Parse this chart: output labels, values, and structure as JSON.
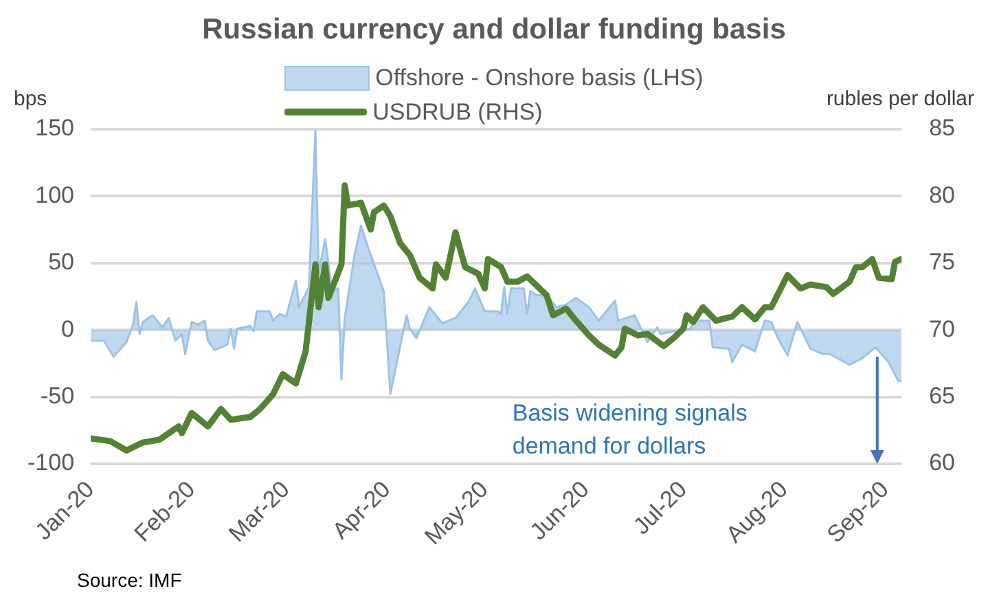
{
  "chart_data": {
    "type": "area",
    "title": "Russian currency and dollar funding basis",
    "ylabel": "bps",
    "y2label": "rubles per dollar",
    "xlim": [
      "2020-01-01",
      "2020-09-06"
    ],
    "xticks": [
      {
        "value": "2020-01-01",
        "label": "Jan-20"
      },
      {
        "value": "2020-02-01",
        "label": "Feb-20"
      },
      {
        "value": "2020-03-01",
        "label": "Mar-20"
      },
      {
        "value": "2020-04-01",
        "label": "Apr-20"
      },
      {
        "value": "2020-05-01",
        "label": "May-20"
      },
      {
        "value": "2020-06-01",
        "label": "Jun-20"
      },
      {
        "value": "2020-07-01",
        "label": "Jul-20"
      },
      {
        "value": "2020-08-01",
        "label": "Aug-20"
      },
      {
        "value": "2020-09-01",
        "label": "Sep-20"
      }
    ],
    "ylim": [
      -100,
      150
    ],
    "yticks": [
      -100,
      -50,
      0,
      50,
      100,
      150
    ],
    "y2lim": [
      60,
      85
    ],
    "y2ticks": [
      60,
      65,
      70,
      75,
      80,
      85
    ],
    "grid": "y",
    "legend": "top",
    "marker": "none",
    "series": [
      {
        "name": "Offshore - Onshore basis (LHS)",
        "color": "#9dc3e6",
        "x": [
          "2020-01-01",
          "2020-01-05",
          "2020-01-08",
          "2020-01-12",
          "2020-01-14",
          "2020-01-15",
          "2020-01-16",
          "2020-01-17",
          "2020-01-20",
          "2020-01-23",
          "2020-01-25",
          "2020-01-27",
          "2020-01-29",
          "2020-01-30",
          "2020-02-01",
          "2020-02-03",
          "2020-02-05",
          "2020-02-06",
          "2020-02-08",
          "2020-02-12",
          "2020-02-13",
          "2020-02-14",
          "2020-02-15",
          "2020-02-19",
          "2020-02-20",
          "2020-02-21",
          "2020-02-25",
          "2020-02-26",
          "2020-02-28",
          "2020-03-01",
          "2020-03-04",
          "2020-03-05",
          "2020-03-08",
          "2020-03-10",
          "2020-03-11",
          "2020-03-13",
          "2020-03-15",
          "2020-03-17",
          "2020-03-18",
          "2020-03-19",
          "2020-03-22",
          "2020-03-24",
          "2020-03-26",
          "2020-03-31",
          "2020-04-02",
          "2020-04-07",
          "2020-04-08",
          "2020-04-10",
          "2020-04-14",
          "2020-04-16",
          "2020-04-18",
          "2020-04-22",
          "2020-04-26",
          "2020-04-28",
          "2020-05-01",
          "2020-05-05",
          "2020-05-06",
          "2020-05-07",
          "2020-05-08",
          "2020-05-09",
          "2020-05-13",
          "2020-05-14",
          "2020-05-15",
          "2020-05-17",
          "2020-05-20",
          "2020-05-23",
          "2020-05-26",
          "2020-05-29",
          "2020-06-02",
          "2020-06-05",
          "2020-06-10",
          "2020-06-11",
          "2020-06-16",
          "2020-06-18",
          "2020-06-20",
          "2020-06-23",
          "2020-06-24",
          "2020-06-28",
          "2020-07-03",
          "2020-07-05",
          "2020-07-09",
          "2020-07-10",
          "2020-07-15",
          "2020-07-16",
          "2020-07-19",
          "2020-07-23",
          "2020-07-26",
          "2020-07-28",
          "2020-07-30",
          "2020-08-02",
          "2020-08-05",
          "2020-08-09",
          "2020-08-13",
          "2020-08-15",
          "2020-08-21",
          "2020-08-25",
          "2020-08-29",
          "2020-09-02",
          "2020-09-05",
          "2020-09-06"
        ],
        "values": [
          -8,
          -8,
          -20,
          -9,
          4,
          21,
          -3,
          6,
          11,
          2,
          9,
          -8,
          -3,
          -18,
          6,
          4,
          7,
          -8,
          -15,
          -11,
          1,
          -14,
          1,
          3,
          -1,
          14,
          14,
          7,
          12,
          10,
          37,
          17,
          32,
          149,
          43,
          68,
          31,
          31,
          -37,
          9,
          56,
          78,
          63,
          29,
          -48,
          11,
          1,
          -6,
          17,
          11,
          5,
          9,
          21,
          31,
          14,
          14,
          12,
          32,
          12,
          31,
          31,
          12,
          29,
          26,
          26,
          17,
          19,
          24,
          17,
          7,
          22,
          7,
          11,
          1,
          -9,
          2,
          -3,
          -1,
          1,
          7,
          7,
          -13,
          -14,
          -24,
          -11,
          -16,
          7,
          6,
          -6,
          -19,
          6,
          -14,
          -18,
          -18,
          -26,
          -21,
          -13,
          -24,
          -38,
          -38
        ]
      },
      {
        "name": "USDRUB (RHS)",
        "type": "line",
        "axis": "y2",
        "color": "#548235",
        "x": [
          "2020-01-01",
          "2020-01-07",
          "2020-01-12",
          "2020-01-17",
          "2020-01-22",
          "2020-01-28",
          "2020-01-29",
          "2020-02-01",
          "2020-02-06",
          "2020-02-10",
          "2020-02-13",
          "2020-02-19",
          "2020-02-22",
          "2020-02-26",
          "2020-02-29",
          "2020-03-04",
          "2020-03-07",
          "2020-03-10",
          "2020-03-11",
          "2020-03-13",
          "2020-03-14",
          "2020-03-18",
          "2020-03-19",
          "2020-03-20",
          "2020-03-24",
          "2020-03-27",
          "2020-03-28",
          "2020-03-31",
          "2020-04-02",
          "2020-04-05",
          "2020-04-08",
          "2020-04-11",
          "2020-04-15",
          "2020-04-16",
          "2020-04-19",
          "2020-04-22",
          "2020-04-25",
          "2020-04-29",
          "2020-05-01",
          "2020-05-02",
          "2020-05-06",
          "2020-05-08",
          "2020-05-11",
          "2020-05-14",
          "2020-05-20",
          "2020-05-22",
          "2020-05-26",
          "2020-05-29",
          "2020-06-02",
          "2020-06-05",
          "2020-06-10",
          "2020-06-12",
          "2020-06-13",
          "2020-06-17",
          "2020-06-20",
          "2020-06-25",
          "2020-06-28",
          "2020-07-01",
          "2020-07-02",
          "2020-07-04",
          "2020-07-07",
          "2020-07-11",
          "2020-07-16",
          "2020-07-19",
          "2020-07-23",
          "2020-07-26",
          "2020-07-28",
          "2020-08-02",
          "2020-08-06",
          "2020-08-09",
          "2020-08-14",
          "2020-08-16",
          "2020-08-21",
          "2020-08-23",
          "2020-08-25",
          "2020-08-28",
          "2020-08-30",
          "2020-09-03",
          "2020-09-04",
          "2020-09-06"
        ],
        "values": [
          61.9,
          61.7,
          61.0,
          61.6,
          61.8,
          62.8,
          62.3,
          63.8,
          62.8,
          64.1,
          63.3,
          63.5,
          64.1,
          65.2,
          66.7,
          66.0,
          68.4,
          74.9,
          71.7,
          74.9,
          72.4,
          74.9,
          80.8,
          79.3,
          79.5,
          77.5,
          78.8,
          79.3,
          78.5,
          76.5,
          75.6,
          73.9,
          73.1,
          74.9,
          73.9,
          77.3,
          74.7,
          74.2,
          73.1,
          75.3,
          74.7,
          73.6,
          73.6,
          74.0,
          72.6,
          71.1,
          71.6,
          70.7,
          69.6,
          68.9,
          68.1,
          68.7,
          70.1,
          69.6,
          69.7,
          68.8,
          69.4,
          70.1,
          71.1,
          70.6,
          71.7,
          70.7,
          71.0,
          71.7,
          70.8,
          71.7,
          71.7,
          74.1,
          73.1,
          73.4,
          73.2,
          72.7,
          73.6,
          74.7,
          74.7,
          75.3,
          73.9,
          73.8,
          75.1,
          75.3
        ]
      }
    ],
    "annotations": [
      "Basis widening signals\ndemand for dollars",
      "Source: IMF"
    ]
  }
}
